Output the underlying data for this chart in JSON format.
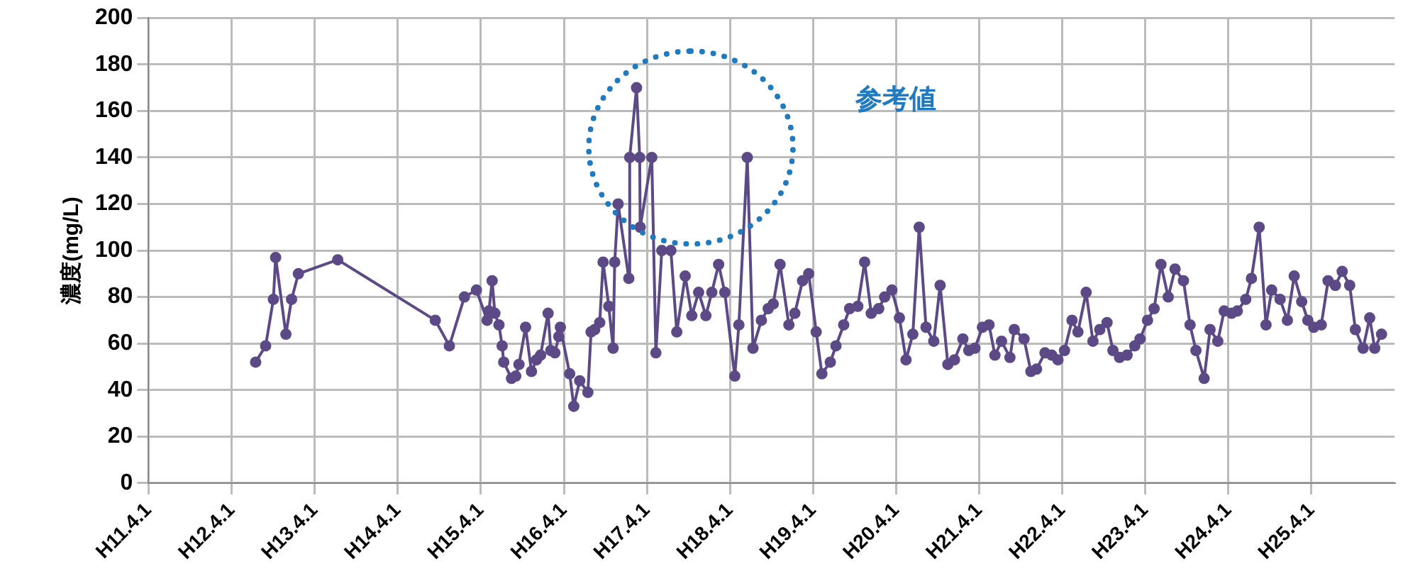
{
  "chart_data": {
    "type": "line",
    "ylabel": "濃度(mg/L)",
    "annotations": [
      "参考値"
    ],
    "xlim": [
      "1999-04-01",
      "2014-04-01"
    ],
    "xticks": [
      {
        "value": "1999-04-01",
        "label": "H11.4.1"
      },
      {
        "value": "2000-04-01",
        "label": "H12.4.1"
      },
      {
        "value": "2001-04-01",
        "label": "H13.4.1"
      },
      {
        "value": "2002-04-01",
        "label": "H14.4.1"
      },
      {
        "value": "2003-04-01",
        "label": "H15.4.1"
      },
      {
        "value": "2004-04-01",
        "label": "H16.4.1"
      },
      {
        "value": "2005-04-01",
        "label": "H17.4.1"
      },
      {
        "value": "2006-04-01",
        "label": "H18.4.1"
      },
      {
        "value": "2007-04-01",
        "label": "H19.4.1"
      },
      {
        "value": "2008-04-01",
        "label": "H20.4.1"
      },
      {
        "value": "2009-04-01",
        "label": "H21.4.1"
      },
      {
        "value": "2010-04-01",
        "label": "H22.4.1"
      },
      {
        "value": "2011-04-01",
        "label": "H23.4.1"
      },
      {
        "value": "2012-04-01",
        "label": "H24.4.1"
      },
      {
        "value": "2013-04-01",
        "label": "H25.4.1"
      }
    ],
    "ylim": [
      0,
      200
    ],
    "yticks": [
      0,
      20,
      40,
      60,
      80,
      100,
      120,
      140,
      160,
      180,
      200
    ],
    "grid": true,
    "marker": "circle",
    "line_style": "solid",
    "series": [
      {
        "color": "#5c4a86",
        "x": [
          "2000-07-15",
          "2000-08-28",
          "2000-10-01",
          "2000-10-11",
          "2000-11-25",
          "2000-12-20",
          "2001-01-19",
          "2001-07-11",
          "2002-09-13",
          "2002-11-14",
          "2003-01-19",
          "2003-03-13",
          "2003-04-29",
          "2003-05-07",
          "2003-05-21",
          "2003-06-02",
          "2003-06-20",
          "2003-07-04",
          "2003-07-11",
          "2003-08-14",
          "2003-09-02",
          "2003-09-16",
          "2003-10-15",
          "2003-11-10",
          "2003-12-02",
          "2003-12-20",
          "2004-01-22",
          "2004-02-03",
          "2004-02-21",
          "2004-03-09",
          "2004-03-16",
          "2004-04-26",
          "2004-05-14",
          "2004-06-09",
          "2004-07-15",
          "2004-07-29",
          "2004-08-14",
          "2004-09-05",
          "2004-09-20",
          "2004-10-15",
          "2004-11-03",
          "2004-11-10",
          "2004-11-25",
          "2005-01-11",
          "2005-01-15",
          "2005-02-14",
          "2005-02-28",
          "2005-03-02",
          "2005-04-22",
          "2005-05-10",
          "2005-06-05",
          "2005-07-15",
          "2005-08-10",
          "2005-09-16",
          "2005-10-15",
          "2005-11-14",
          "2005-12-16",
          "2006-01-11",
          "2006-02-10",
          "2006-03-09",
          "2006-04-22",
          "2006-05-10",
          "2006-06-16",
          "2006-07-11",
          "2006-08-17",
          "2006-09-16",
          "2006-10-08",
          "2006-11-07",
          "2006-12-16",
          "2007-01-11",
          "2007-02-14",
          "2007-03-13",
          "2007-04-15",
          "2007-05-10",
          "2007-06-16",
          "2007-07-11",
          "2007-08-14",
          "2007-09-09",
          "2007-10-15",
          "2007-11-14",
          "2007-12-13",
          "2008-01-15",
          "2008-02-10",
          "2008-03-13",
          "2008-04-15",
          "2008-05-14",
          "2008-06-13",
          "2008-07-11",
          "2008-08-10",
          "2008-09-13",
          "2008-10-11",
          "2008-11-14",
          "2008-12-13",
          "2009-01-19",
          "2009-02-14",
          "2009-03-13",
          "2009-04-15",
          "2009-05-14",
          "2009-06-09",
          "2009-07-08",
          "2009-08-14",
          "2009-09-02",
          "2009-10-15",
          "2009-11-14",
          "2009-12-09",
          "2010-01-15",
          "2010-02-14",
          "2010-03-13",
          "2010-04-11",
          "2010-05-14",
          "2010-06-09",
          "2010-07-15",
          "2010-08-14",
          "2010-09-13",
          "2010-10-15",
          "2010-11-10",
          "2010-12-09",
          "2011-01-11",
          "2011-02-14",
          "2011-03-09",
          "2011-04-11",
          "2011-05-10",
          "2011-06-09",
          "2011-07-11",
          "2011-08-10",
          "2011-09-16",
          "2011-10-15",
          "2011-11-10",
          "2011-12-16",
          "2012-01-11",
          "2012-02-14",
          "2012-03-13",
          "2012-04-15",
          "2012-05-10",
          "2012-06-16",
          "2012-07-11",
          "2012-08-14",
          "2012-09-13",
          "2012-10-08",
          "2012-11-14",
          "2012-12-16",
          "2013-01-15",
          "2013-02-17",
          "2013-03-16",
          "2013-04-11",
          "2013-05-14",
          "2013-06-13",
          "2013-07-15",
          "2013-08-14",
          "2013-09-16",
          "2013-10-11",
          "2013-11-14",
          "2013-12-13",
          "2014-01-04",
          "2014-02-03"
        ],
        "values": [
          52,
          59,
          79,
          97,
          64,
          79,
          90,
          96,
          70,
          59,
          80,
          83,
          70,
          74,
          87,
          73,
          68,
          59,
          52,
          45,
          46,
          51,
          67,
          48,
          53,
          55,
          73,
          57,
          56,
          63,
          67,
          47,
          33,
          44,
          39,
          65,
          66,
          69,
          95,
          76,
          58,
          95,
          120,
          88,
          140,
          170,
          140,
          110,
          140,
          56,
          100,
          100,
          65,
          89,
          72,
          82,
          72,
          82,
          94,
          82,
          46,
          68,
          140,
          58,
          70,
          75,
          77,
          94,
          68,
          73,
          87,
          90,
          65,
          47,
          52,
          59,
          68,
          75,
          76,
          95,
          73,
          75,
          80,
          83,
          71,
          53,
          64,
          110,
          67,
          61,
          85,
          51,
          53,
          62,
          57,
          58,
          67,
          68,
          55,
          61,
          54,
          66,
          62,
          48,
          49,
          56,
          55,
          53,
          57,
          70,
          65,
          82,
          61,
          66,
          69,
          57,
          54,
          55,
          59,
          62,
          70,
          75,
          94,
          80,
          92,
          87,
          68,
          57,
          45,
          66,
          61,
          74,
          73,
          74,
          79,
          88,
          110,
          68,
          83,
          79,
          70,
          89,
          78,
          70,
          67,
          68,
          87,
          85,
          91,
          85,
          66,
          58,
          71,
          58,
          64
        ]
      }
    ]
  }
}
